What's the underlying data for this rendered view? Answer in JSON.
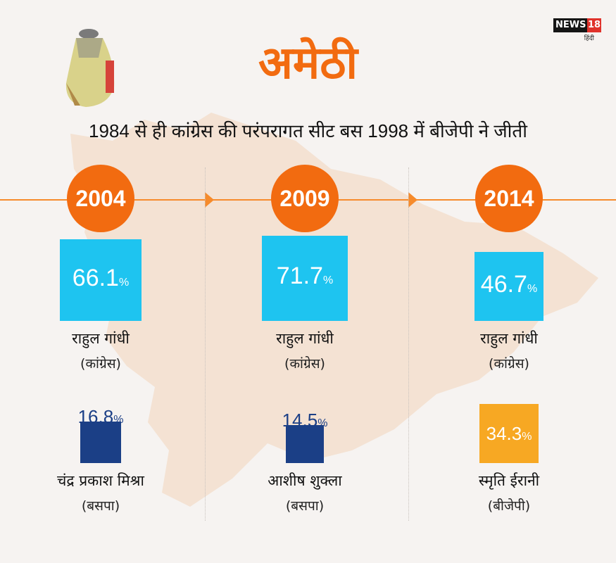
{
  "logo": {
    "brand": "NEWS",
    "num": "18",
    "sub": "हिंदी"
  },
  "title": "अमेठी",
  "subtitle": "1984 से ही कांग्रेस की परंपरागत सीट बस 1998 में बीजेपी ने जीती",
  "colors": {
    "orange": "#f26b10",
    "congress": "#1ec4f0",
    "bsp": "#1b3f86",
    "bjp": "#f7a823"
  },
  "chart_data": {
    "type": "bar",
    "title": "अमेठी",
    "subtitle": "1984 से ही कांग्रेस की परंपरागत सीट बस 1998 में बीजेपी ने जीती",
    "unit": "%",
    "categories": [
      "2004",
      "2009",
      "2014"
    ],
    "series": [
      {
        "values": [
          66.1,
          71.7,
          46.7
        ],
        "candidates": [
          "राहुल गांधी",
          "राहुल गांधी",
          "राहुल गांधी"
        ],
        "parties": [
          "(कांग्रेस)",
          "(कांग्रेस)",
          "(कांग्रेस)"
        ],
        "colors": [
          "#1ec4f0",
          "#1ec4f0",
          "#1ec4f0"
        ]
      },
      {
        "values": [
          16.8,
          14.5,
          34.3
        ],
        "candidates": [
          "चंद्र प्रकाश मिश्रा",
          "आशीष शुक्ला",
          "स्मृति ईरानी"
        ],
        "parties": [
          "(बसपा)",
          "(बसपा)",
          "(बीजेपी)"
        ],
        "colors": [
          "#1b3f86",
          "#1b3f86",
          "#f7a823"
        ]
      }
    ]
  }
}
